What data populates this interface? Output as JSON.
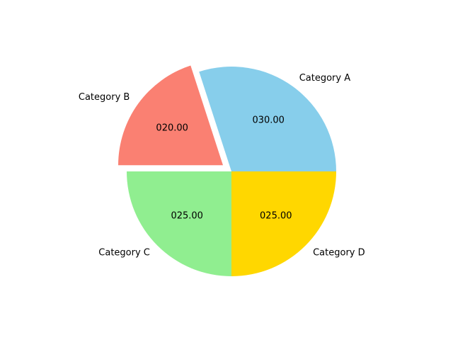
{
  "chart_data": {
    "type": "pie",
    "title": "",
    "categories": [
      "Category A",
      "Category B",
      "Category C",
      "Category D"
    ],
    "values": [
      30,
      20,
      25,
      25
    ],
    "value_labels": [
      "030.00",
      "020.00",
      "025.00",
      "025.00"
    ],
    "colors": [
      "#87CEEB",
      "#FA8072",
      "#90EE90",
      "#FFD700"
    ],
    "exploded": [
      "Category B"
    ],
    "start_angle_deg": 0,
    "direction": "counterclockwise",
    "legend": "none"
  }
}
